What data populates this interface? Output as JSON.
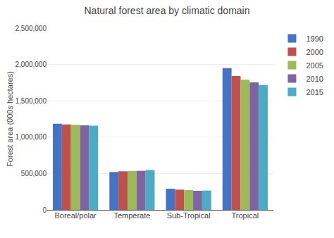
{
  "chart_data": {
    "type": "bar",
    "title": "Natural forest area by climatic domain",
    "ylabel": "Forest area (000s hectares)",
    "categories": [
      "Boreal/polar",
      "Temperate",
      "Sub-Tropical",
      "Tropical"
    ],
    "series": [
      {
        "name": "1990",
        "color": "#4472C4",
        "values": [
          1185000,
          520000,
          290000,
          1950000
        ]
      },
      {
        "name": "2000",
        "color": "#C0504D",
        "values": [
          1175000,
          530000,
          278000,
          1840000
        ]
      },
      {
        "name": "2005",
        "color": "#9BBB59",
        "values": [
          1170000,
          535000,
          272000,
          1790000
        ]
      },
      {
        "name": "2010",
        "color": "#8064A2",
        "values": [
          1163000,
          537000,
          262000,
          1755000
        ]
      },
      {
        "name": "2015",
        "color": "#4BACC6",
        "values": [
          1158000,
          548000,
          265000,
          1718000
        ]
      }
    ],
    "ylim": [
      0,
      2500000
    ],
    "yticks": [
      0,
      {
        "value": 500000,
        "label": "500,000"
      },
      {
        "value": 1000000,
        "label": "1,000,000"
      },
      {
        "value": 1500000,
        "label": "1,500,000"
      },
      {
        "value": 2000000,
        "label": "2,000,000"
      },
      {
        "value": 2500000,
        "label": "2,500,000"
      }
    ],
    "grid": true,
    "legend": "right"
  }
}
